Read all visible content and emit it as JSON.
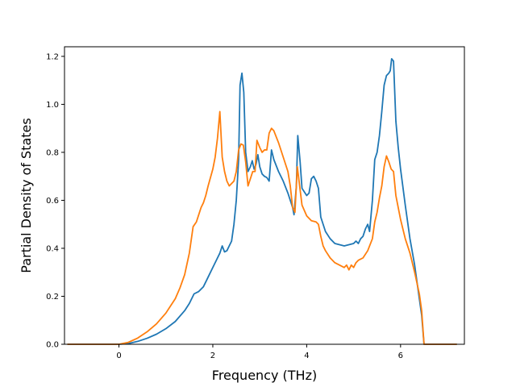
{
  "chart_data": {
    "type": "line",
    "title": "",
    "xlabel": "Frequency (THz)",
    "ylabel": "Partial Density of States",
    "xlim": [
      -1.16,
      7.36
    ],
    "ylim": [
      0.0,
      1.24
    ],
    "grid": false,
    "legend": "none",
    "xticks": [
      {
        "value": 0,
        "label": "0"
      },
      {
        "value": 2,
        "label": "2"
      },
      {
        "value": 4,
        "label": "4"
      },
      {
        "value": 6,
        "label": "6"
      }
    ],
    "yticks": [
      {
        "value": 0.0,
        "label": "0.0"
      },
      {
        "value": 0.2,
        "label": "0.2"
      },
      {
        "value": 0.4,
        "label": "0.4"
      },
      {
        "value": 0.6,
        "label": "0.6"
      },
      {
        "value": 0.8,
        "label": "0.8"
      },
      {
        "value": 1.0,
        "label": "1.0"
      },
      {
        "value": 1.2,
        "label": "1.2"
      }
    ],
    "series": [
      {
        "color": "#1f77b4",
        "points": [
          [
            -1.1,
            0.0
          ],
          [
            0.0,
            0.0
          ],
          [
            0.2,
            0.003
          ],
          [
            0.4,
            0.012
          ],
          [
            0.6,
            0.025
          ],
          [
            0.8,
            0.042
          ],
          [
            1.0,
            0.065
          ],
          [
            1.2,
            0.095
          ],
          [
            1.4,
            0.14
          ],
          [
            1.5,
            0.17
          ],
          [
            1.6,
            0.21
          ],
          [
            1.7,
            0.22
          ],
          [
            1.8,
            0.24
          ],
          [
            1.9,
            0.28
          ],
          [
            2.0,
            0.32
          ],
          [
            2.1,
            0.36
          ],
          [
            2.15,
            0.38
          ],
          [
            2.2,
            0.41
          ],
          [
            2.25,
            0.385
          ],
          [
            2.3,
            0.39
          ],
          [
            2.4,
            0.43
          ],
          [
            2.45,
            0.5
          ],
          [
            2.5,
            0.6
          ],
          [
            2.55,
            0.77
          ],
          [
            2.58,
            1.08
          ],
          [
            2.62,
            1.13
          ],
          [
            2.66,
            1.05
          ],
          [
            2.7,
            0.8
          ],
          [
            2.75,
            0.72
          ],
          [
            2.8,
            0.74
          ],
          [
            2.84,
            0.765
          ],
          [
            2.88,
            0.73
          ],
          [
            2.92,
            0.75
          ],
          [
            2.96,
            0.79
          ],
          [
            3.0,
            0.74
          ],
          [
            3.05,
            0.71
          ],
          [
            3.1,
            0.7
          ],
          [
            3.15,
            0.695
          ],
          [
            3.2,
            0.68
          ],
          [
            3.25,
            0.81
          ],
          [
            3.3,
            0.77
          ],
          [
            3.4,
            0.72
          ],
          [
            3.5,
            0.68
          ],
          [
            3.6,
            0.63
          ],
          [
            3.7,
            0.57
          ],
          [
            3.73,
            0.54
          ],
          [
            3.78,
            0.66
          ],
          [
            3.81,
            0.87
          ],
          [
            3.86,
            0.76
          ],
          [
            3.9,
            0.65
          ],
          [
            4.0,
            0.62
          ],
          [
            4.05,
            0.63
          ],
          [
            4.1,
            0.69
          ],
          [
            4.15,
            0.7
          ],
          [
            4.2,
            0.68
          ],
          [
            4.25,
            0.65
          ],
          [
            4.3,
            0.53
          ],
          [
            4.4,
            0.47
          ],
          [
            4.5,
            0.44
          ],
          [
            4.6,
            0.42
          ],
          [
            4.7,
            0.415
          ],
          [
            4.8,
            0.41
          ],
          [
            4.9,
            0.415
          ],
          [
            5.0,
            0.42
          ],
          [
            5.05,
            0.43
          ],
          [
            5.1,
            0.42
          ],
          [
            5.15,
            0.44
          ],
          [
            5.2,
            0.45
          ],
          [
            5.25,
            0.48
          ],
          [
            5.3,
            0.5
          ],
          [
            5.34,
            0.47
          ],
          [
            5.4,
            0.6
          ],
          [
            5.45,
            0.77
          ],
          [
            5.5,
            0.8
          ],
          [
            5.55,
            0.87
          ],
          [
            5.6,
            0.97
          ],
          [
            5.65,
            1.08
          ],
          [
            5.7,
            1.12
          ],
          [
            5.75,
            1.13
          ],
          [
            5.78,
            1.14
          ],
          [
            5.81,
            1.19
          ],
          [
            5.85,
            1.18
          ],
          [
            5.9,
            0.93
          ],
          [
            5.95,
            0.82
          ],
          [
            6.0,
            0.73
          ],
          [
            6.1,
            0.58
          ],
          [
            6.2,
            0.44
          ],
          [
            6.3,
            0.33
          ],
          [
            6.4,
            0.19
          ],
          [
            6.45,
            0.12
          ],
          [
            6.5,
            0.0
          ],
          [
            7.2,
            0.0
          ]
        ]
      },
      {
        "color": "#ff7f0e",
        "points": [
          [
            -1.1,
            0.0
          ],
          [
            0.0,
            0.0
          ],
          [
            0.2,
            0.008
          ],
          [
            0.4,
            0.026
          ],
          [
            0.6,
            0.052
          ],
          [
            0.8,
            0.085
          ],
          [
            1.0,
            0.13
          ],
          [
            1.2,
            0.19
          ],
          [
            1.3,
            0.235
          ],
          [
            1.4,
            0.29
          ],
          [
            1.5,
            0.38
          ],
          [
            1.58,
            0.49
          ],
          [
            1.65,
            0.51
          ],
          [
            1.7,
            0.54
          ],
          [
            1.75,
            0.57
          ],
          [
            1.8,
            0.59
          ],
          [
            1.85,
            0.62
          ],
          [
            1.9,
            0.66
          ],
          [
            2.0,
            0.73
          ],
          [
            2.05,
            0.78
          ],
          [
            2.1,
            0.86
          ],
          [
            2.15,
            0.97
          ],
          [
            2.2,
            0.78
          ],
          [
            2.25,
            0.72
          ],
          [
            2.3,
            0.68
          ],
          [
            2.35,
            0.66
          ],
          [
            2.45,
            0.68
          ],
          [
            2.5,
            0.72
          ],
          [
            2.55,
            0.81
          ],
          [
            2.6,
            0.835
          ],
          [
            2.65,
            0.83
          ],
          [
            2.7,
            0.76
          ],
          [
            2.75,
            0.66
          ],
          [
            2.8,
            0.69
          ],
          [
            2.85,
            0.72
          ],
          [
            2.9,
            0.72
          ],
          [
            2.94,
            0.85
          ],
          [
            3.0,
            0.82
          ],
          [
            3.05,
            0.8
          ],
          [
            3.1,
            0.81
          ],
          [
            3.15,
            0.81
          ],
          [
            3.2,
            0.88
          ],
          [
            3.25,
            0.9
          ],
          [
            3.3,
            0.89
          ],
          [
            3.4,
            0.84
          ],
          [
            3.5,
            0.78
          ],
          [
            3.6,
            0.72
          ],
          [
            3.65,
            0.66
          ],
          [
            3.7,
            0.57
          ],
          [
            3.75,
            0.55
          ],
          [
            3.8,
            0.74
          ],
          [
            3.85,
            0.66
          ],
          [
            3.9,
            0.58
          ],
          [
            4.0,
            0.535
          ],
          [
            4.1,
            0.515
          ],
          [
            4.2,
            0.51
          ],
          [
            4.25,
            0.5
          ],
          [
            4.3,
            0.45
          ],
          [
            4.35,
            0.41
          ],
          [
            4.4,
            0.39
          ],
          [
            4.5,
            0.36
          ],
          [
            4.6,
            0.34
          ],
          [
            4.7,
            0.33
          ],
          [
            4.8,
            0.32
          ],
          [
            4.85,
            0.33
          ],
          [
            4.9,
            0.31
          ],
          [
            4.95,
            0.33
          ],
          [
            5.0,
            0.32
          ],
          [
            5.05,
            0.34
          ],
          [
            5.1,
            0.35
          ],
          [
            5.2,
            0.36
          ],
          [
            5.3,
            0.39
          ],
          [
            5.4,
            0.44
          ],
          [
            5.45,
            0.51
          ],
          [
            5.5,
            0.55
          ],
          [
            5.55,
            0.61
          ],
          [
            5.6,
            0.66
          ],
          [
            5.65,
            0.74
          ],
          [
            5.7,
            0.785
          ],
          [
            5.75,
            0.76
          ],
          [
            5.8,
            0.73
          ],
          [
            5.85,
            0.72
          ],
          [
            5.9,
            0.62
          ],
          [
            6.0,
            0.52
          ],
          [
            6.1,
            0.44
          ],
          [
            6.2,
            0.38
          ],
          [
            6.3,
            0.3
          ],
          [
            6.4,
            0.21
          ],
          [
            6.45,
            0.14
          ],
          [
            6.5,
            0.0
          ],
          [
            7.2,
            0.0
          ]
        ]
      }
    ]
  }
}
